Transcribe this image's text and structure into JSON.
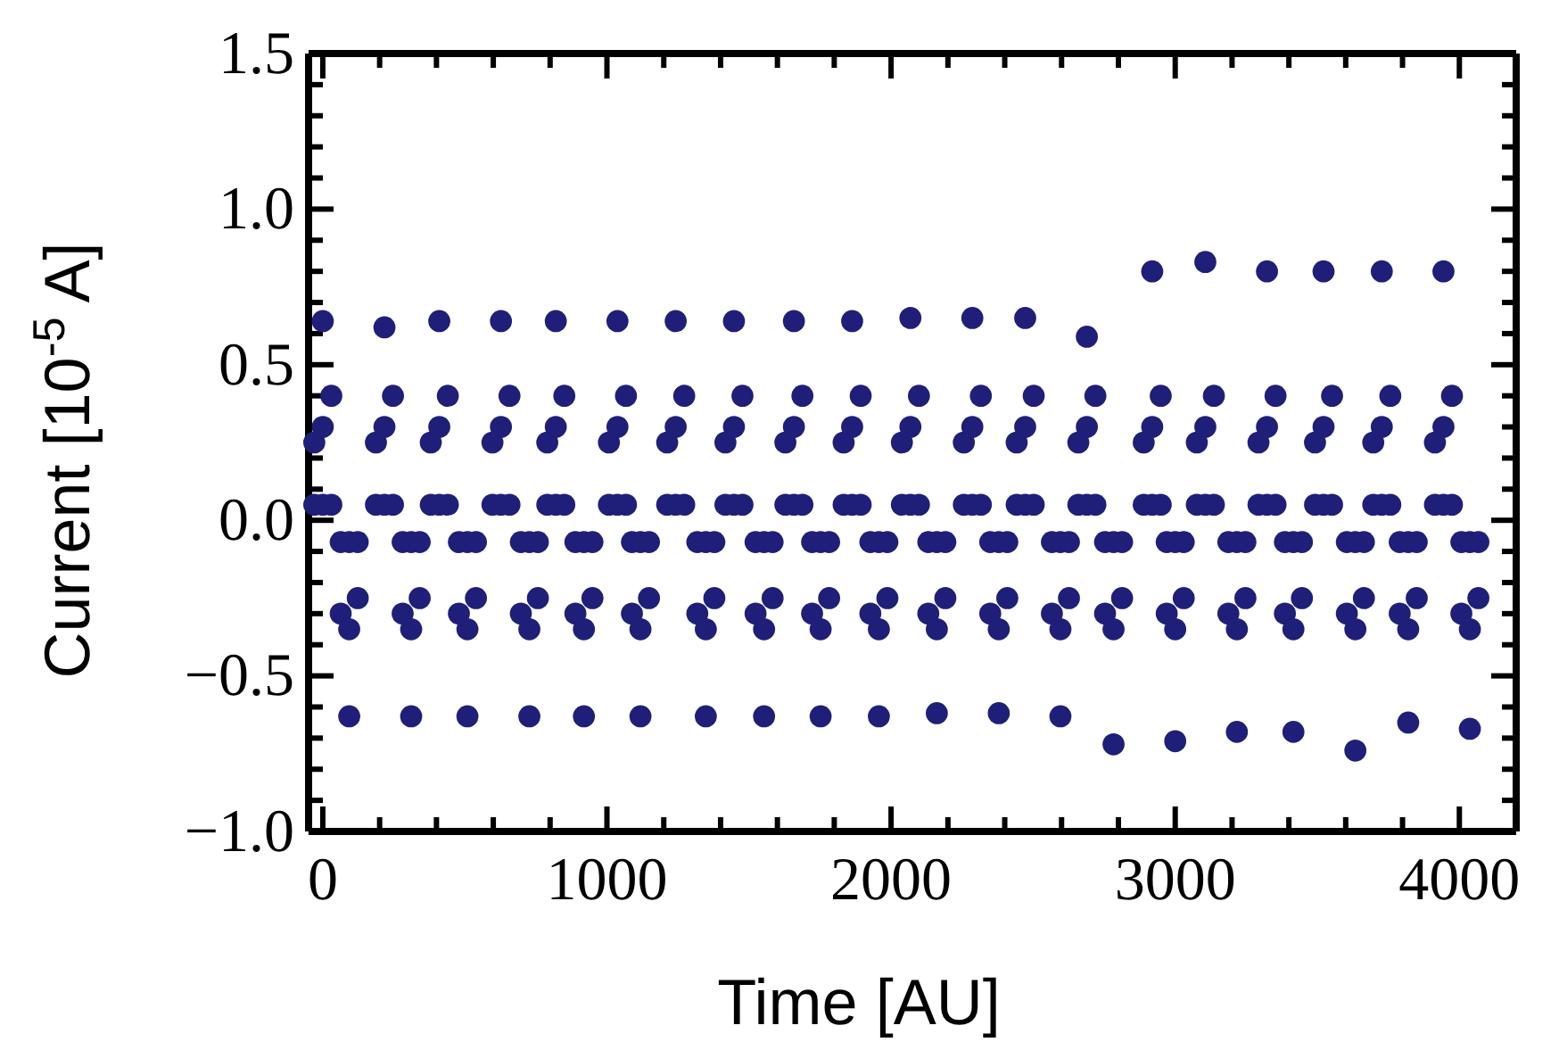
{
  "chart_data": {
    "type": "scatter",
    "xlabel": "Time [AU]",
    "ylabel": "Current [10$^{-5}$ A]",
    "xlim": [
      -50,
      4200
    ],
    "ylim": [
      -1,
      1.5
    ],
    "xticks": [
      0,
      {
        "value": 200,
        "label": null
      },
      {
        "value": 400,
        "label": null
      },
      {
        "value": 600,
        "label": null
      },
      {
        "value": 800,
        "label": null
      },
      1000,
      {
        "value": 1200,
        "label": null
      },
      {
        "value": 1400,
        "label": null
      },
      {
        "value": 1600,
        "label": null
      },
      {
        "value": 1800,
        "label": null
      },
      2000,
      {
        "value": 2200,
        "label": null
      },
      {
        "value": 2400,
        "label": null
      },
      {
        "value": 2600,
        "label": null
      },
      {
        "value": 2800,
        "label": null
      },
      3000,
      {
        "value": 3200,
        "label": null
      },
      {
        "value": 3400,
        "label": null
      },
      {
        "value": 3600,
        "label": null
      },
      {
        "value": 3800,
        "label": null
      },
      4000
    ],
    "yticks": [
      {
        "value": -1,
        "label": "−1.0"
      },
      {
        "value": -0.9,
        "label": null
      },
      {
        "value": -0.8,
        "label": null
      },
      {
        "value": -0.7,
        "label": null
      },
      {
        "value": -0.6,
        "label": null
      },
      {
        "value": -0.5,
        "label": "−0.5"
      },
      {
        "value": -0.4,
        "label": null
      },
      {
        "value": -0.3,
        "label": null
      },
      {
        "value": -0.2,
        "label": null
      },
      {
        "value": -0.1,
        "label": null
      },
      {
        "value": 0,
        "label": "0.0"
      },
      {
        "value": 0.1,
        "label": null
      },
      {
        "value": 0.2,
        "label": null
      },
      {
        "value": 0.3,
        "label": null
      },
      {
        "value": 0.4,
        "label": null
      },
      {
        "value": 0.5,
        "label": "0.5"
      },
      {
        "value": 0.6,
        "label": null
      },
      {
        "value": 0.7,
        "label": null
      },
      {
        "value": 0.8,
        "label": null
      },
      {
        "value": 0.9,
        "label": null
      },
      {
        "value": 1,
        "label": "1.0"
      },
      {
        "value": 1.1,
        "label": null
      },
      {
        "value": 1.2,
        "label": null
      },
      {
        "value": 1.3,
        "label": null
      },
      {
        "value": 1.4,
        "label": null
      },
      {
        "value": 1.5,
        "label": "1.5"
      }
    ],
    "grid": false,
    "marker": "circle",
    "series": [
      {
        "color": "#1f1f7a",
        "x": [
          -30,
          -30,
          0,
          0,
          0,
          30,
          30,
          187,
          187,
          217,
          217,
          217,
          247,
          247,
          380,
          380,
          410,
          410,
          410,
          440,
          440,
          597,
          597,
          627,
          627,
          627,
          657,
          657,
          790,
          790,
          820,
          820,
          820,
          850,
          850,
          1007,
          1007,
          1037,
          1037,
          1037,
          1067,
          1067,
          1212,
          1212,
          1242,
          1242,
          1242,
          1272,
          1272,
          1417,
          1417,
          1447,
          1447,
          1447,
          1477,
          1477,
          1628,
          1628,
          1658,
          1658,
          1658,
          1688,
          1688,
          1833,
          1833,
          1863,
          1863,
          1863,
          1893,
          1893,
          2038,
          2038,
          2068,
          2068,
          2068,
          2098,
          2098,
          2256,
          2256,
          2286,
          2286,
          2286,
          2316,
          2316,
          2442,
          2442,
          2472,
          2472,
          2472,
          2502,
          2502,
          2659,
          2659,
          2689,
          2689,
          2689,
          2719,
          2719,
          2889,
          2889,
          2919,
          2919,
          2919,
          2949,
          2949,
          3076,
          3076,
          3106,
          3106,
          3106,
          3136,
          3136,
          3293,
          3293,
          3323,
          3323,
          3323,
          3353,
          3353,
          3492,
          3492,
          3522,
          3522,
          3522,
          3552,
          3552,
          3697,
          3697,
          3727,
          3727,
          3727,
          3757,
          3757,
          3914,
          3914,
          3944,
          3944,
          3944,
          3974,
          3974
        ],
        "values": [
          0.05,
          0.25,
          0.05,
          0.3,
          0.64,
          0.4,
          0.05,
          0.05,
          0.25,
          0.05,
          0.3,
          0.62,
          0.4,
          0.05,
          0.05,
          0.25,
          0.05,
          0.3,
          0.64,
          0.4,
          0.05,
          0.05,
          0.25,
          0.05,
          0.3,
          0.64,
          0.4,
          0.05,
          0.05,
          0.25,
          0.05,
          0.3,
          0.64,
          0.4,
          0.05,
          0.05,
          0.25,
          0.05,
          0.3,
          0.64,
          0.4,
          0.05,
          0.05,
          0.25,
          0.05,
          0.3,
          0.64,
          0.4,
          0.05,
          0.05,
          0.25,
          0.05,
          0.3,
          0.64,
          0.4,
          0.05,
          0.05,
          0.25,
          0.05,
          0.3,
          0.64,
          0.4,
          0.05,
          0.05,
          0.25,
          0.05,
          0.3,
          0.64,
          0.4,
          0.05,
          0.05,
          0.25,
          0.05,
          0.3,
          0.65,
          0.4,
          0.05,
          0.05,
          0.25,
          0.05,
          0.3,
          0.65,
          0.4,
          0.05,
          0.05,
          0.25,
          0.05,
          0.3,
          0.65,
          0.4,
          0.05,
          0.05,
          0.25,
          0.05,
          0.3,
          0.59,
          0.4,
          0.05,
          0.05,
          0.25,
          0.05,
          0.3,
          0.8,
          0.4,
          0.05,
          0.05,
          0.25,
          0.05,
          0.3,
          0.83,
          0.4,
          0.05,
          0.05,
          0.25,
          0.05,
          0.3,
          0.8,
          0.4,
          0.05,
          0.05,
          0.25,
          0.05,
          0.3,
          0.8,
          0.4,
          0.05,
          0.05,
          0.25,
          0.05,
          0.3,
          0.8,
          0.4,
          0.05,
          0.05,
          0.25,
          0.05,
          0.3,
          0.8,
          0.4,
          0.05
        ]
      },
      {
        "color": "#1f1f7a",
        "x": [
          63,
          63,
          93,
          93,
          93,
          123,
          123,
          281,
          281,
          311,
          311,
          311,
          341,
          341,
          479,
          479,
          509,
          509,
          509,
          539,
          539,
          697,
          697,
          727,
          727,
          727,
          757,
          757,
          889,
          889,
          919,
          919,
          919,
          949,
          949,
          1088,
          1088,
          1118,
          1118,
          1118,
          1148,
          1148,
          1318,
          1318,
          1348,
          1348,
          1348,
          1378,
          1378,
          1523,
          1523,
          1553,
          1553,
          1553,
          1583,
          1583,
          1722,
          1722,
          1752,
          1752,
          1752,
          1782,
          1782,
          1927,
          1927,
          1957,
          1957,
          1957,
          1987,
          1987,
          2131,
          2131,
          2161,
          2161,
          2161,
          2191,
          2191,
          2349,
          2349,
          2379,
          2379,
          2379,
          2409,
          2409,
          2566,
          2566,
          2596,
          2596,
          2596,
          2626,
          2626,
          2753,
          2753,
          2783,
          2783,
          2783,
          2813,
          2813,
          2970,
          2970,
          3000,
          3000,
          3000,
          3030,
          3030,
          3187,
          3187,
          3217,
          3217,
          3217,
          3247,
          3247,
          3386,
          3386,
          3416,
          3416,
          3416,
          3446,
          3446,
          3604,
          3604,
          3634,
          3634,
          3634,
          3664,
          3664,
          3790,
          3790,
          3820,
          3820,
          3820,
          3850,
          3850,
          4007,
          4007,
          4037,
          4037,
          4037,
          4067,
          4067
        ],
        "values": [
          -0.07,
          -0.3,
          -0.07,
          -0.35,
          -0.63,
          -0.25,
          -0.07,
          -0.07,
          -0.3,
          -0.07,
          -0.35,
          -0.63,
          -0.25,
          -0.07,
          -0.07,
          -0.3,
          -0.07,
          -0.35,
          -0.63,
          -0.25,
          -0.07,
          -0.07,
          -0.3,
          -0.07,
          -0.35,
          -0.63,
          -0.25,
          -0.07,
          -0.07,
          -0.3,
          -0.07,
          -0.35,
          -0.63,
          -0.25,
          -0.07,
          -0.07,
          -0.3,
          -0.07,
          -0.35,
          -0.63,
          -0.25,
          -0.07,
          -0.07,
          -0.3,
          -0.07,
          -0.35,
          -0.63,
          -0.25,
          -0.07,
          -0.07,
          -0.3,
          -0.07,
          -0.35,
          -0.63,
          -0.25,
          -0.07,
          -0.07,
          -0.3,
          -0.07,
          -0.35,
          -0.63,
          -0.25,
          -0.07,
          -0.07,
          -0.3,
          -0.07,
          -0.35,
          -0.63,
          -0.25,
          -0.07,
          -0.07,
          -0.3,
          -0.07,
          -0.35,
          -0.62,
          -0.25,
          -0.07,
          -0.07,
          -0.3,
          -0.07,
          -0.35,
          -0.62,
          -0.25,
          -0.07,
          -0.07,
          -0.3,
          -0.07,
          -0.35,
          -0.63,
          -0.25,
          -0.07,
          -0.07,
          -0.3,
          -0.07,
          -0.35,
          -0.72,
          -0.25,
          -0.07,
          -0.07,
          -0.3,
          -0.07,
          -0.35,
          -0.71,
          -0.25,
          -0.07,
          -0.07,
          -0.3,
          -0.07,
          -0.35,
          -0.68,
          -0.25,
          -0.07,
          -0.07,
          -0.3,
          -0.07,
          -0.35,
          -0.68,
          -0.25,
          -0.07,
          -0.07,
          -0.3,
          -0.07,
          -0.35,
          -0.74,
          -0.25,
          -0.07,
          -0.07,
          -0.3,
          -0.07,
          -0.35,
          -0.65,
          -0.25,
          -0.07,
          -0.07,
          -0.3,
          -0.07,
          -0.35,
          -0.67,
          -0.25,
          -0.07
        ]
      }
    ]
  }
}
